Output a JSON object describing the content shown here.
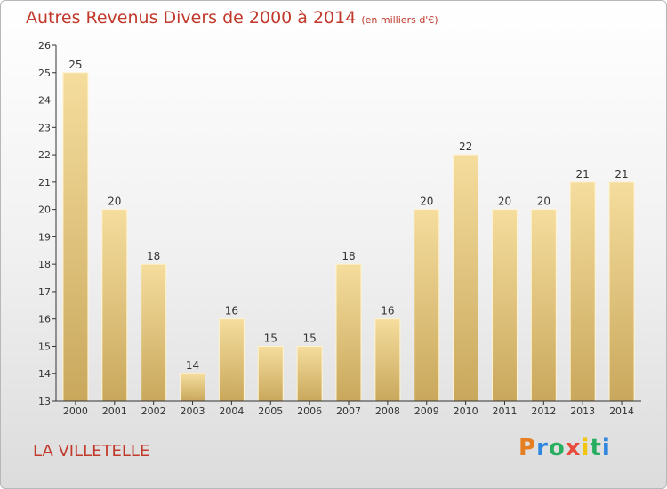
{
  "chart_data": {
    "type": "bar",
    "title": "Autres Revenus Divers de 2000 à 2014",
    "subtitle": "(en milliers d'€)",
    "categories": [
      "2000",
      "2001",
      "2002",
      "2003",
      "2004",
      "2005",
      "2006",
      "2007",
      "2008",
      "2009",
      "2010",
      "2011",
      "2012",
      "2013",
      "2014"
    ],
    "values": [
      25,
      20,
      18,
      14,
      16,
      15,
      15,
      18,
      16,
      20,
      22,
      20,
      20,
      21,
      21
    ],
    "xlabel": "",
    "ylabel": "",
    "ylim": [
      13,
      26
    ],
    "yticks": [
      13,
      14,
      15,
      16,
      17,
      18,
      19,
      20,
      21,
      22,
      23,
      24,
      25,
      26
    ],
    "grid": false,
    "bar_color": "#e5c77f",
    "bar_color_light": "#f5dd9e",
    "bar_color_dark": "#c9a85c"
  },
  "location_label": "LA VILLETELLE",
  "logo": {
    "letters": [
      "P",
      "r",
      "o",
      "x",
      "i",
      "t",
      "i"
    ],
    "colors": [
      "#e67e22",
      "#2e86de",
      "#27ae60",
      "#e74c3c",
      "#f1c40f",
      "#27ae60",
      "#2e86de"
    ]
  },
  "colors": {
    "title": "#c0392b",
    "axis": "#333333"
  }
}
